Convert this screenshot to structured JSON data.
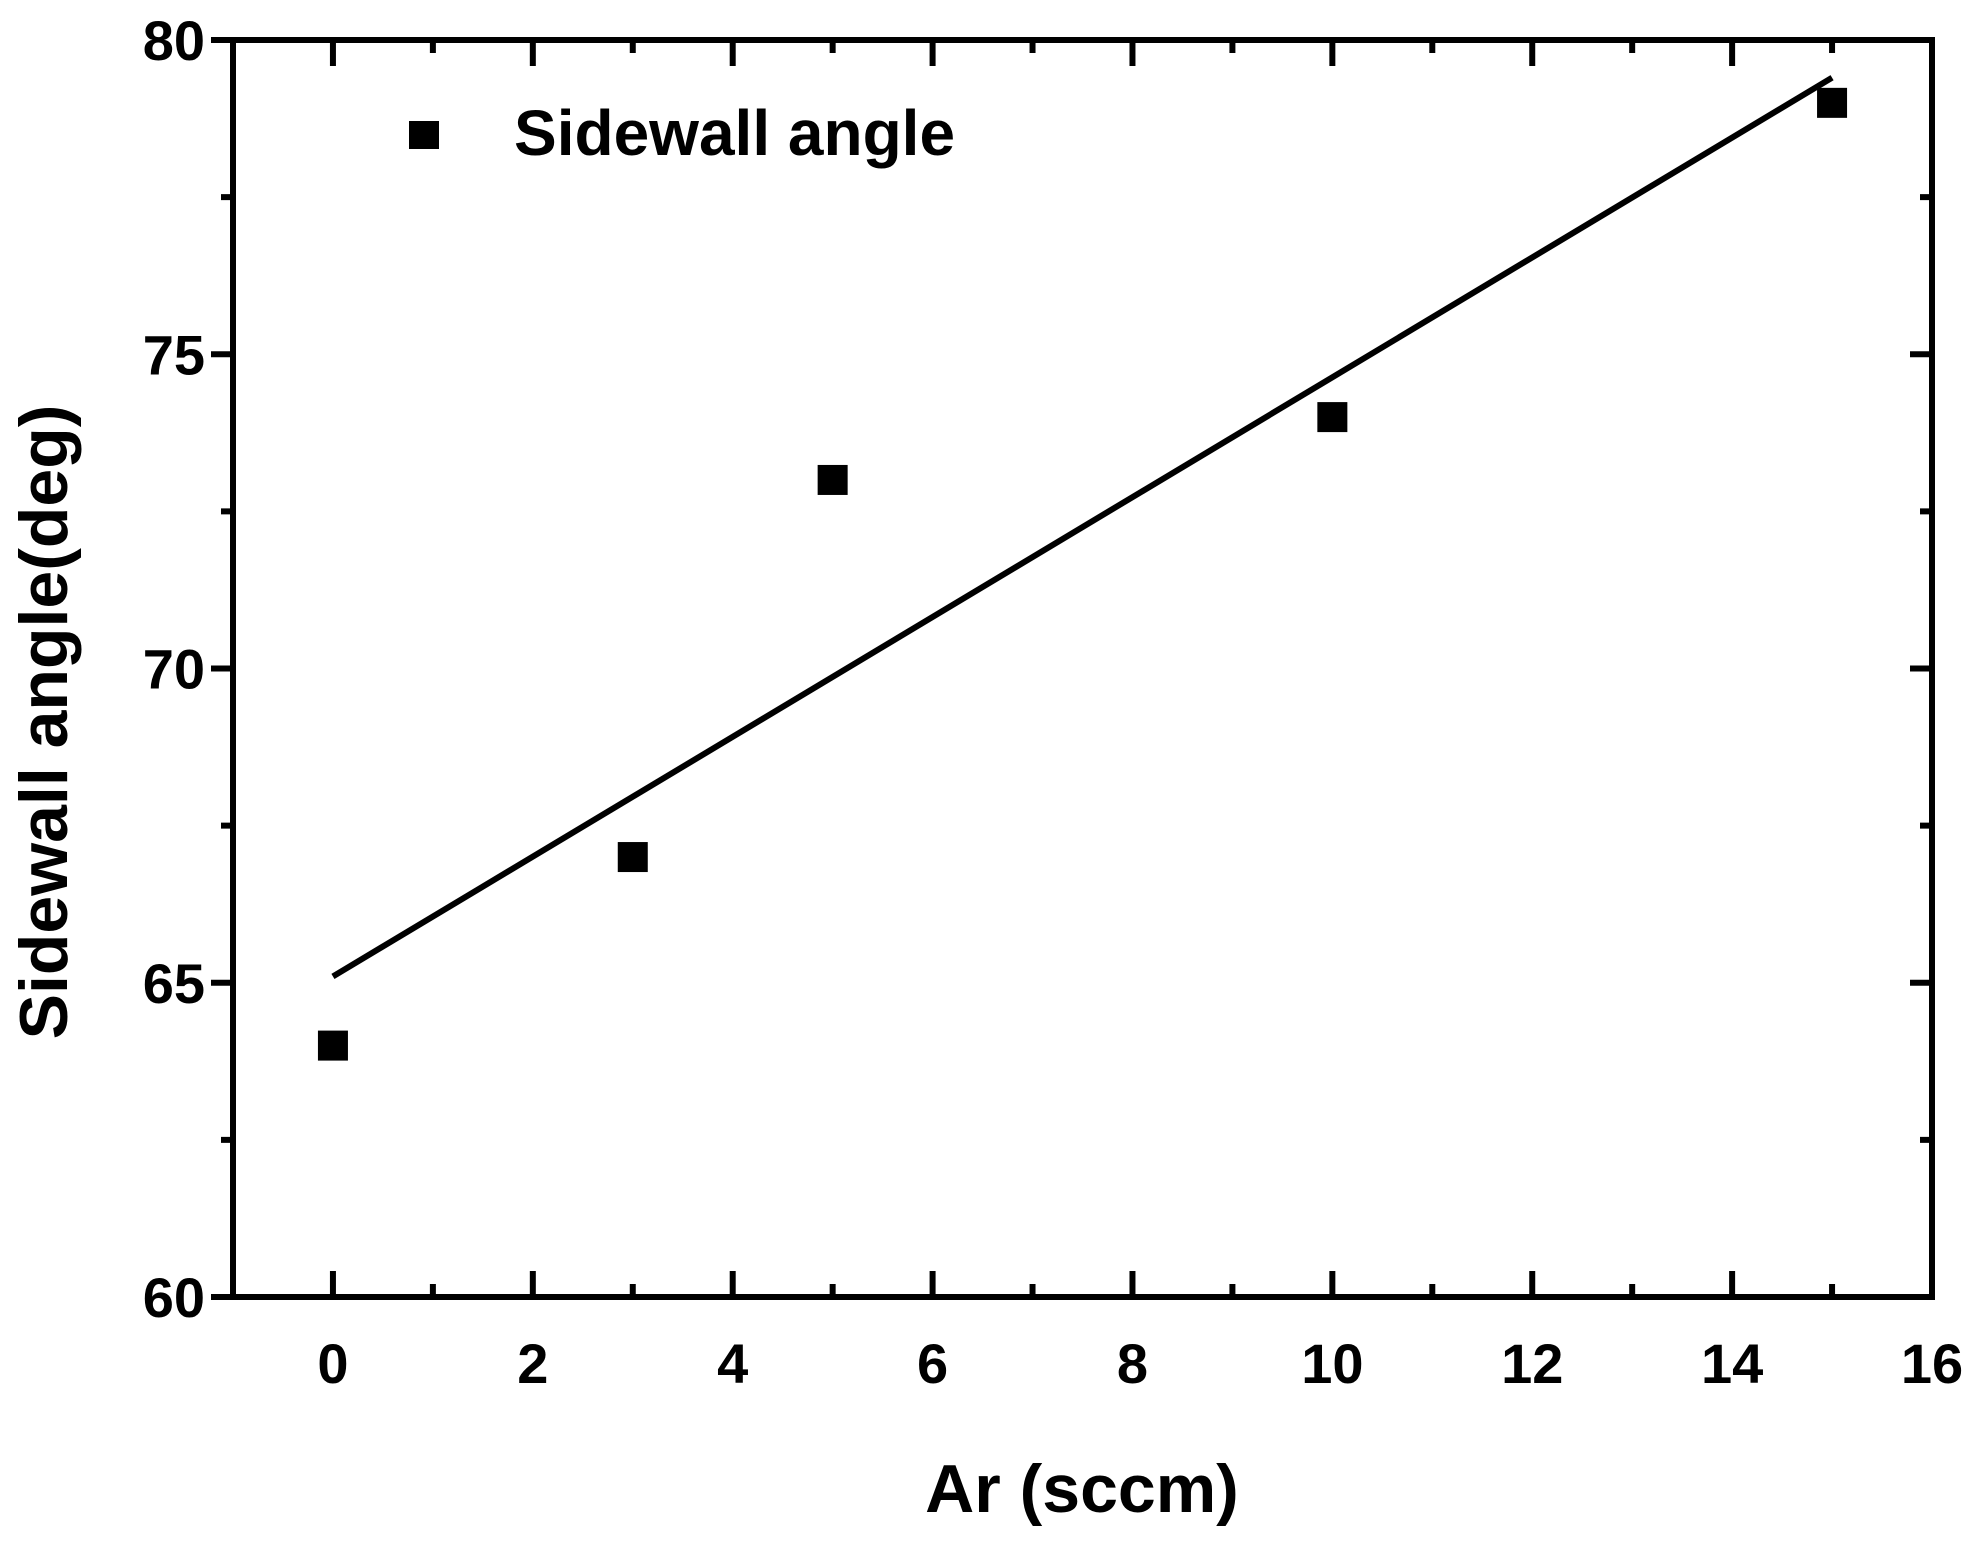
{
  "chart_data": {
    "type": "scatter",
    "title": "",
    "xlabel": "Ar (sccm)",
    "ylabel": "Sidewall angle(deg)",
    "xlim": [
      -1,
      16
    ],
    "ylim": [
      60,
      80
    ],
    "x_ticks": [
      0,
      2,
      4,
      6,
      8,
      10,
      12,
      14,
      16
    ],
    "x_tick_labels": [
      "0",
      "2",
      "4",
      "6",
      "8",
      "10",
      "12",
      "14",
      "16"
    ],
    "y_ticks": [
      60,
      65,
      70,
      75,
      80
    ],
    "y_tick_labels": [
      "60",
      "65",
      "70",
      "75",
      "80"
    ],
    "grid": false,
    "legend": {
      "position": "top-left",
      "entries": [
        "Sidewall angle"
      ]
    },
    "series": [
      {
        "name": "Sidewall angle",
        "marker": "square",
        "color": "#000000",
        "x": [
          0,
          3,
          5,
          10,
          15
        ],
        "y": [
          64,
          67,
          73,
          74,
          79
        ]
      }
    ],
    "fit_line": {
      "color": "#000000",
      "x": [
        0,
        15
      ],
      "y": [
        65.1,
        79.4
      ]
    }
  }
}
